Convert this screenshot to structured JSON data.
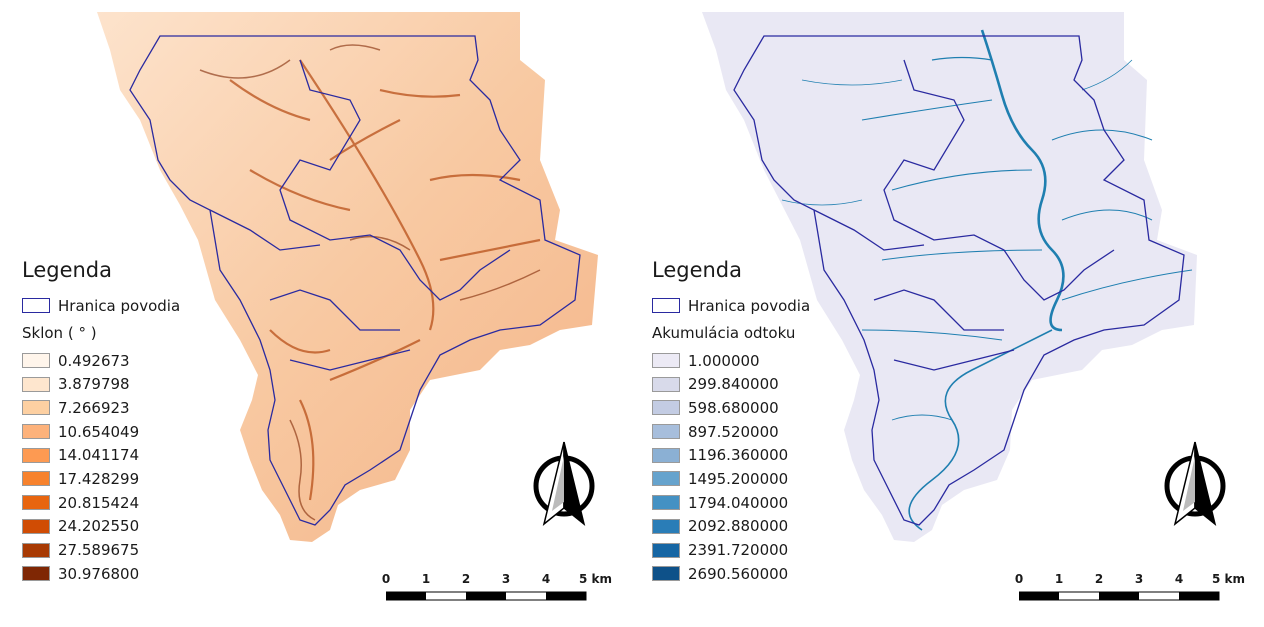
{
  "colors": {
    "boundary": "#2a2aa0",
    "slope_ramp": [
      "#fff5eb",
      "#fee6ce",
      "#fdd0a2",
      "#fdb27b",
      "#fd9a52",
      "#f7822d",
      "#e8650f",
      "#d04c04",
      "#a83a03",
      "#7f2704"
    ],
    "flow_ramp": [
      "#eceaf5",
      "#d8daea",
      "#c3cce3",
      "#a7bedc",
      "#8bb0d4",
      "#66a3cd",
      "#4491c3",
      "#2a7db7",
      "#1666a4",
      "#0e5189"
    ]
  },
  "left_panel": {
    "legend_title": "Legenda",
    "boundary_label": "Hranica povodia",
    "layer_title": "Sklon ( ° )",
    "classes": [
      "0.492673",
      "3.879798",
      "7.266923",
      "10.654049",
      "14.041174",
      "17.428299",
      "20.815424",
      "24.202550",
      "27.589675",
      "30.976800"
    ]
  },
  "right_panel": {
    "legend_title": "Legenda",
    "boundary_label": "Hranica povodia",
    "layer_title": "Akumulácia odtoku",
    "classes": [
      "1.000000",
      "299.840000",
      "598.680000",
      "897.520000",
      "1196.360000",
      "1495.200000",
      "1794.040000",
      "2092.880000",
      "2391.720000",
      "2690.560000"
    ]
  },
  "scale_bar": {
    "ticks": [
      "0",
      "1",
      "2",
      "3",
      "4",
      "5 km"
    ]
  },
  "north_arrow_icon": "north-arrow-icon"
}
